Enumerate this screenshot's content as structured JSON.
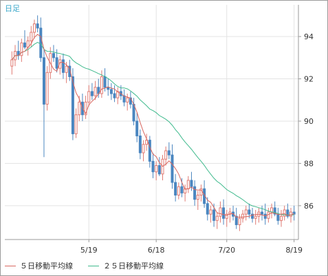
{
  "chart_label": "日足",
  "colors": {
    "up": "#e07a72",
    "down": "#4a86c0",
    "ma5": "#d9675f",
    "ma25": "#3fba8d",
    "grid": "#e3e3e3",
    "axis": "#9a9a9a",
    "text": "#333333"
  },
  "legend": [
    {
      "label": "５日移動平均線",
      "color_key": "ma5"
    },
    {
      "label": "２５日移動平均線",
      "color_key": "ma25"
    }
  ],
  "chart_data": {
    "type": "candlestick",
    "title": "",
    "xlabel": "",
    "ylabel": "",
    "ylim": [
      84.4,
      95.5
    ],
    "y_ticks": [
      86,
      88,
      90,
      92,
      94
    ],
    "x_ticks": [
      {
        "label": "5/19",
        "index": 24
      },
      {
        "label": "6/18",
        "index": 45
      },
      {
        "label": "7/20",
        "index": 67
      },
      {
        "label": "8/19",
        "index": 88
      }
    ],
    "grid": true,
    "legend_position": "bottom-left",
    "ohlc": [
      [
        92.6,
        93.3,
        92.2,
        92.9
      ],
      [
        92.9,
        93.6,
        92.6,
        93.3
      ],
      [
        93.3,
        93.8,
        92.9,
        93.1
      ],
      [
        93.1,
        93.9,
        92.8,
        93.7
      ],
      [
        93.7,
        94.3,
        93.4,
        93.5
      ],
      [
        93.5,
        94.0,
        93.1,
        93.8
      ],
      [
        93.8,
        94.5,
        93.5,
        94.2
      ],
      [
        94.2,
        94.8,
        93.9,
        94.6
      ],
      [
        94.6,
        95.0,
        94.2,
        94.4
      ],
      [
        94.4,
        94.9,
        92.8,
        93.0
      ],
      [
        93.0,
        93.4,
        88.3,
        90.8
      ],
      [
        90.8,
        92.6,
        90.5,
        92.3
      ],
      [
        92.3,
        93.5,
        92.0,
        93.2
      ],
      [
        93.2,
        93.6,
        92.8,
        93.0
      ],
      [
        93.0,
        93.4,
        92.3,
        92.5
      ],
      [
        92.5,
        93.1,
        92.2,
        92.9
      ],
      [
        92.9,
        93.2,
        92.0,
        92.3
      ],
      [
        92.3,
        92.8,
        91.8,
        92.6
      ],
      [
        92.6,
        92.9,
        91.9,
        92.1
      ],
      [
        92.1,
        92.5,
        89.1,
        89.4
      ],
      [
        89.4,
        90.6,
        89.2,
        90.3
      ],
      [
        90.3,
        91.2,
        90.0,
        90.9
      ],
      [
        90.9,
        91.3,
        90.0,
        90.3
      ],
      [
        90.3,
        91.2,
        90.1,
        90.9
      ],
      [
        90.9,
        91.7,
        90.7,
        91.4
      ],
      [
        91.4,
        91.8,
        91.0,
        91.2
      ],
      [
        91.2,
        91.9,
        91.0,
        91.6
      ],
      [
        91.6,
        92.0,
        91.1,
        91.3
      ],
      [
        91.3,
        92.4,
        91.1,
        92.1
      ],
      [
        92.1,
        92.5,
        91.4,
        91.6
      ],
      [
        91.6,
        92.0,
        91.2,
        91.5
      ],
      [
        91.5,
        91.8,
        91.0,
        91.3
      ],
      [
        91.3,
        91.7,
        90.9,
        91.1
      ],
      [
        91.1,
        91.6,
        90.8,
        91.4
      ],
      [
        91.4,
        91.7,
        91.0,
        91.2
      ],
      [
        91.2,
        91.5,
        90.7,
        90.9
      ],
      [
        90.9,
        91.3,
        90.5,
        91.1
      ],
      [
        91.1,
        91.4,
        90.6,
        90.8
      ],
      [
        90.8,
        91.1,
        89.8,
        90.0
      ],
      [
        90.0,
        90.4,
        89.0,
        89.3
      ],
      [
        89.3,
        89.6,
        88.2,
        88.5
      ],
      [
        88.5,
        89.1,
        88.1,
        88.9
      ],
      [
        88.9,
        89.4,
        88.6,
        89.1
      ],
      [
        89.1,
        89.3,
        87.8,
        88.1
      ],
      [
        88.1,
        88.5,
        87.3,
        87.6
      ],
      [
        87.6,
        88.1,
        87.2,
        87.9
      ],
      [
        87.9,
        88.3,
        87.4,
        87.5
      ],
      [
        87.5,
        88.4,
        87.2,
        88.2
      ],
      [
        88.2,
        88.8,
        87.9,
        88.6
      ],
      [
        88.6,
        89.0,
        88.2,
        88.4
      ],
      [
        88.4,
        88.9,
        86.8,
        87.1
      ],
      [
        87.1,
        87.5,
        86.2,
        86.5
      ],
      [
        86.5,
        87.1,
        86.3,
        86.9
      ],
      [
        86.9,
        87.3,
        86.4,
        86.6
      ],
      [
        86.6,
        87.0,
        86.2,
        86.8
      ],
      [
        86.8,
        87.4,
        86.6,
        87.2
      ],
      [
        87.2,
        87.6,
        86.7,
        86.9
      ],
      [
        86.9,
        87.2,
        86.0,
        86.3
      ],
      [
        86.3,
        86.7,
        85.8,
        86.5
      ],
      [
        86.5,
        87.0,
        86.2,
        86.8
      ],
      [
        86.8,
        87.2,
        85.9,
        86.1
      ],
      [
        86.1,
        86.4,
        85.3,
        85.6
      ],
      [
        85.6,
        86.0,
        85.2,
        85.8
      ],
      [
        85.8,
        86.1,
        85.0,
        85.3
      ],
      [
        85.3,
        85.7,
        84.9,
        85.5
      ],
      [
        85.5,
        86.2,
        85.2,
        85.9
      ],
      [
        85.9,
        86.3,
        85.1,
        85.4
      ],
      [
        85.4,
        85.8,
        85.0,
        85.6
      ],
      [
        85.6,
        85.9,
        85.2,
        85.7
      ],
      [
        85.7,
        86.0,
        85.3,
        85.5
      ],
      [
        85.5,
        85.9,
        84.9,
        85.1
      ],
      [
        85.1,
        85.6,
        84.8,
        85.4
      ],
      [
        85.4,
        85.8,
        85.2,
        85.6
      ],
      [
        85.6,
        86.0,
        85.3,
        85.8
      ],
      [
        85.8,
        86.1,
        85.4,
        85.6
      ],
      [
        85.6,
        85.9,
        85.2,
        85.4
      ],
      [
        85.4,
        85.8,
        85.1,
        85.5
      ],
      [
        85.5,
        85.9,
        85.2,
        85.7
      ],
      [
        85.7,
        86.0,
        85.3,
        85.6
      ],
      [
        85.6,
        86.1,
        85.1,
        85.4
      ],
      [
        85.4,
        85.9,
        85.2,
        85.7
      ],
      [
        85.7,
        86.1,
        85.4,
        85.9
      ],
      [
        85.9,
        86.2,
        85.5,
        85.6
      ],
      [
        85.6,
        85.9,
        85.1,
        85.3
      ],
      [
        85.3,
        85.8,
        85.0,
        85.5
      ],
      [
        85.5,
        86.0,
        85.3,
        85.8
      ],
      [
        85.8,
        86.1,
        85.4,
        85.5
      ],
      [
        85.5,
        85.9,
        85.2,
        85.7
      ],
      [
        85.7,
        86.0,
        85.3,
        85.6
      ]
    ],
    "series": [
      {
        "name": "５日移動平均線",
        "values": []
      },
      {
        "name": "２５日移動平均線",
        "values": []
      }
    ]
  }
}
